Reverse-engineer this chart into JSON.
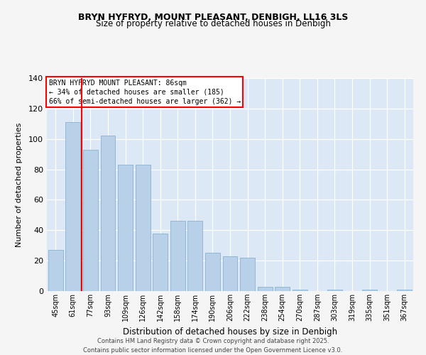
{
  "title_line1": "BRYN HYFRYD, MOUNT PLEASANT, DENBIGH, LL16 3LS",
  "title_line2": "Size of property relative to detached houses in Denbigh",
  "xlabel": "Distribution of detached houses by size in Denbigh",
  "ylabel": "Number of detached properties",
  "bar_labels": [
    "45sqm",
    "61sqm",
    "77sqm",
    "93sqm",
    "109sqm",
    "126sqm",
    "142sqm",
    "158sqm",
    "174sqm",
    "190sqm",
    "206sqm",
    "222sqm",
    "238sqm",
    "254sqm",
    "270sqm",
    "287sqm",
    "303sqm",
    "319sqm",
    "335sqm",
    "351sqm",
    "367sqm"
  ],
  "bar_values": [
    27,
    111,
    93,
    102,
    83,
    83,
    38,
    46,
    46,
    25,
    23,
    22,
    3,
    3,
    1,
    0,
    1,
    0,
    1,
    0,
    1
  ],
  "bar_color": "#b8d0e8",
  "bar_edgecolor": "#7aaac8",
  "plot_bg_color": "#dce8f5",
  "fig_bg_color": "#f5f5f5",
  "vline_x": 1.5,
  "annotation_title": "BRYN HYFRYD MOUNT PLEASANT: 86sqm",
  "annotation_line1": "← 34% of detached houses are smaller (185)",
  "annotation_line2": "66% of semi-detached houses are larger (362) →",
  "ylim": [
    0,
    140
  ],
  "yticks": [
    0,
    20,
    40,
    60,
    80,
    100,
    120,
    140
  ],
  "footer_line1": "Contains HM Land Registry data © Crown copyright and database right 2025.",
  "footer_line2": "Contains public sector information licensed under the Open Government Licence v3.0."
}
